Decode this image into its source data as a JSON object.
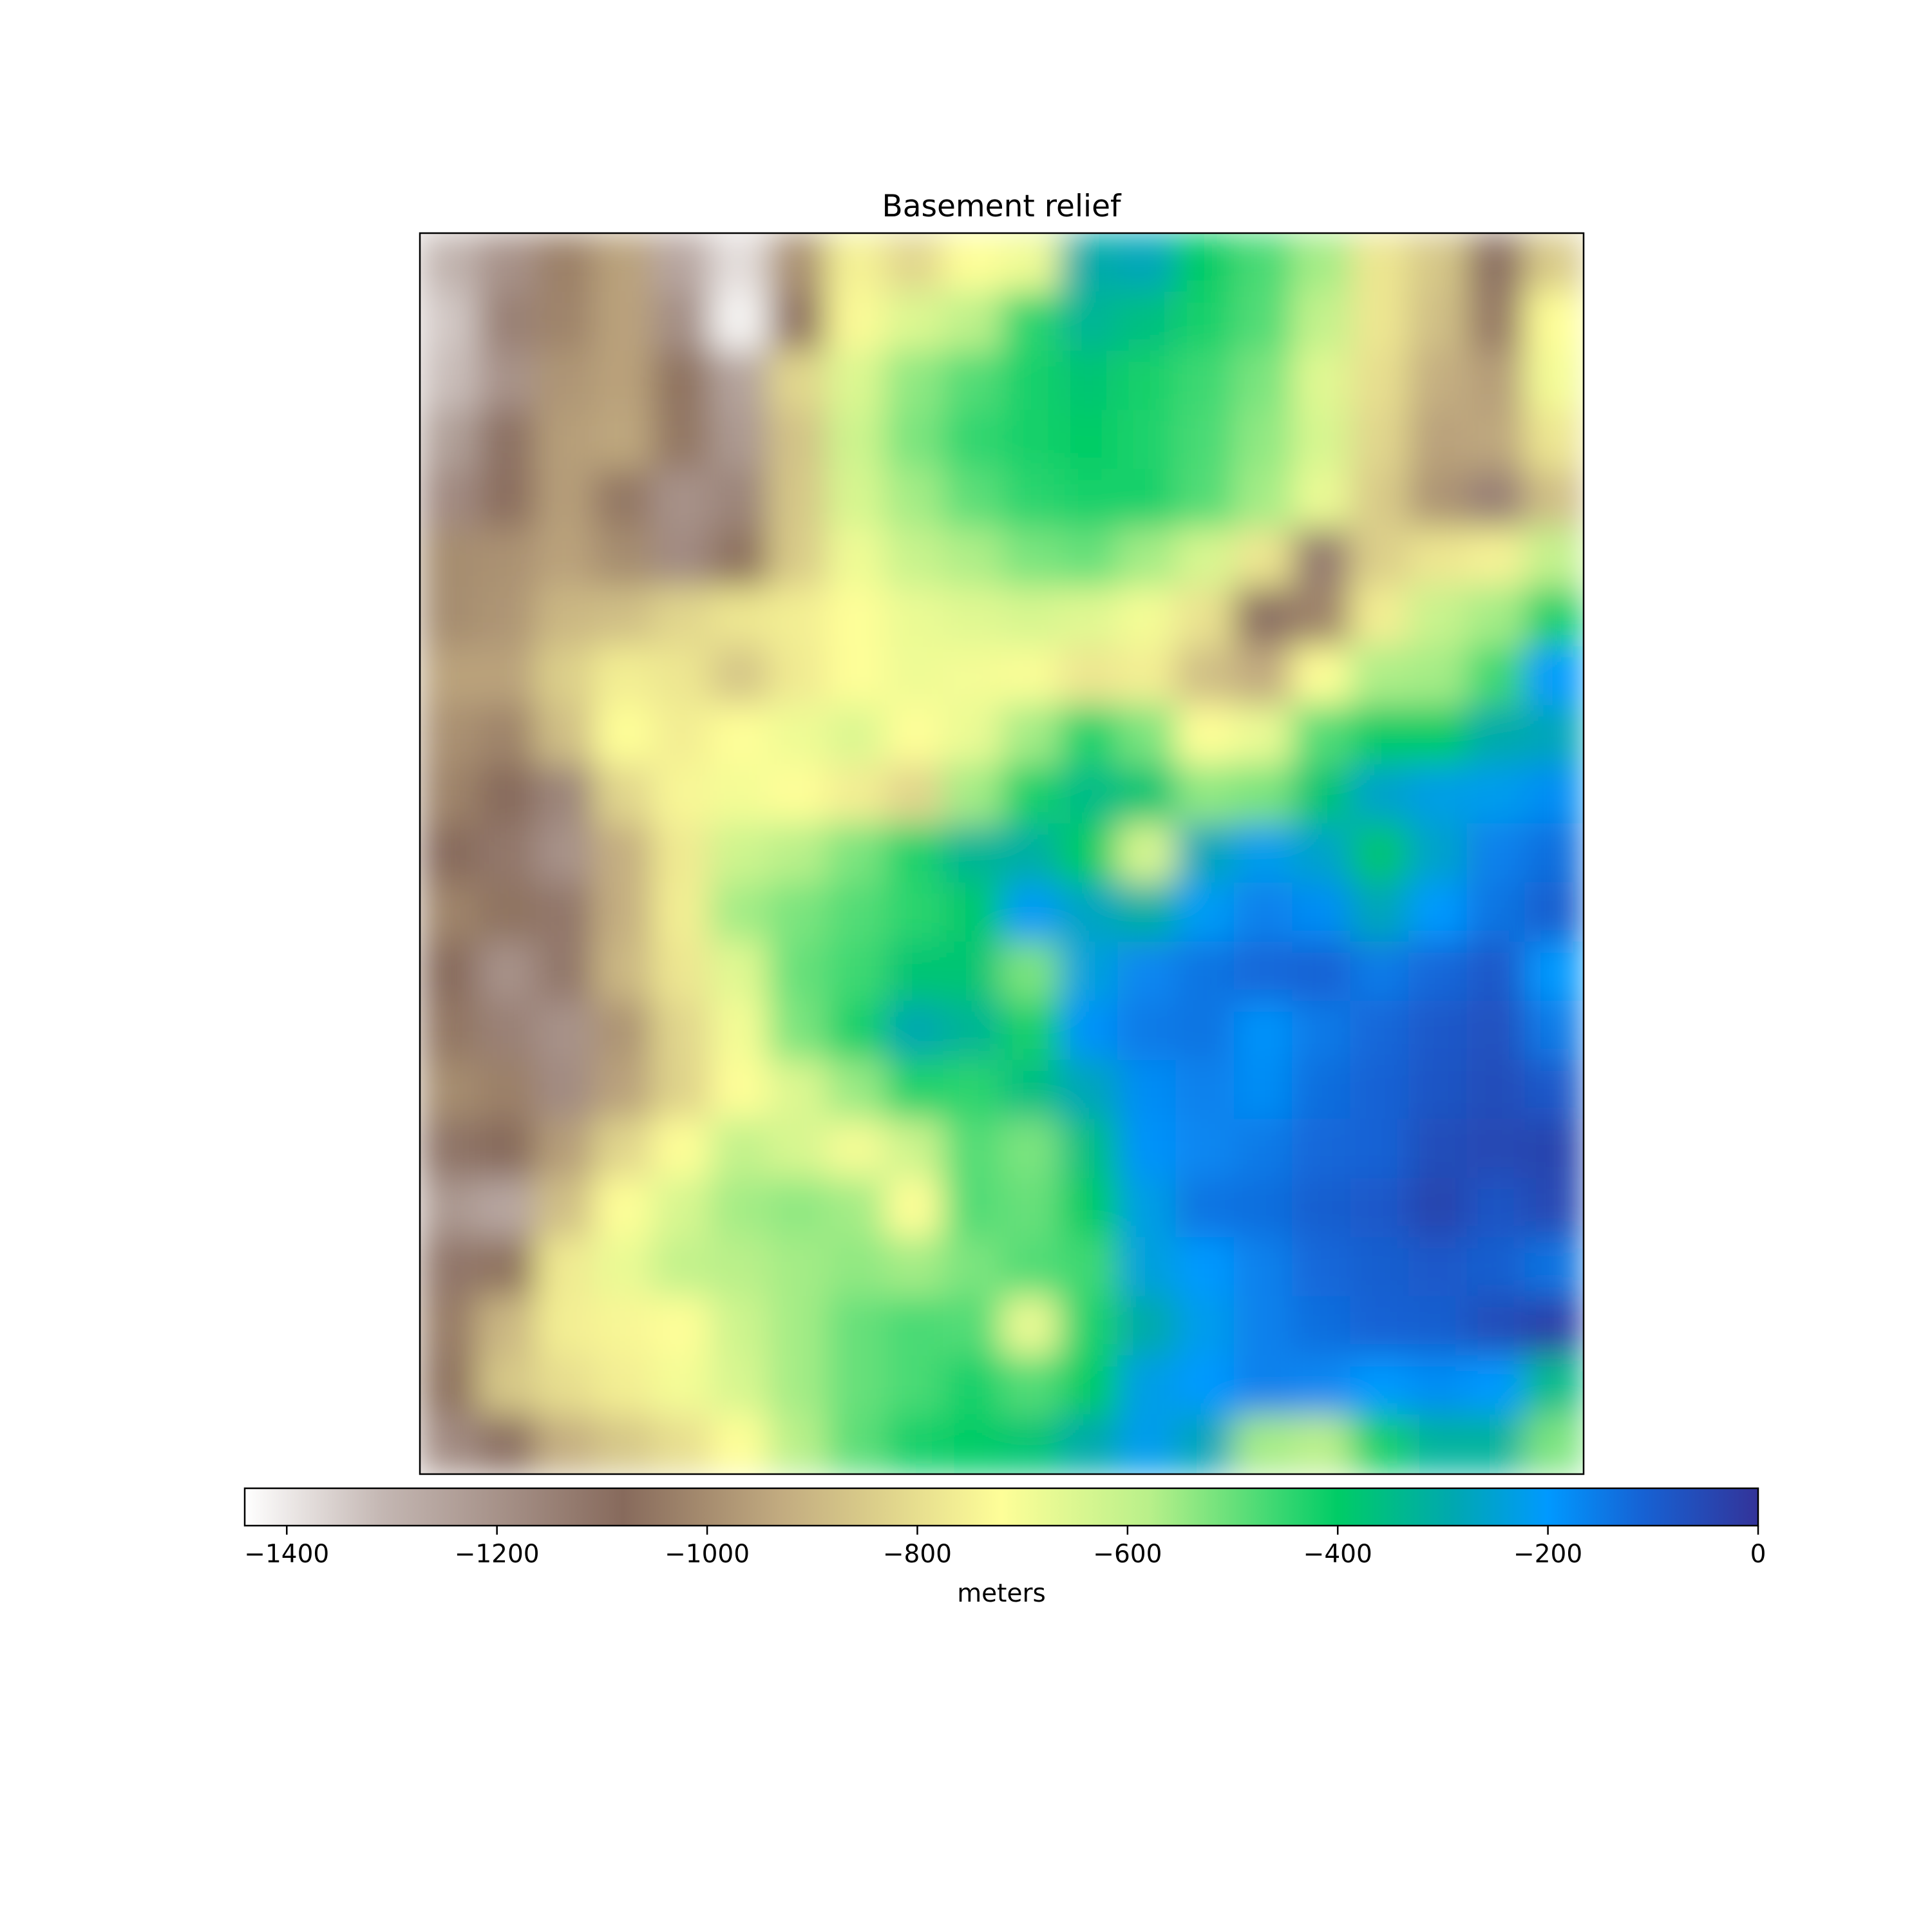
{
  "chart_data": {
    "type": "heatmap",
    "title": "Basement relief",
    "xlabel": "",
    "ylabel": "",
    "colorbar": {
      "label": "meters",
      "range": [
        -1440,
        0
      ],
      "ticks": [
        -1400,
        -1200,
        -1000,
        -800,
        -600,
        -400,
        -200,
        0
      ],
      "tick_labels": [
        "−1400",
        "−1200",
        "−1000",
        "−800",
        "−600",
        "−400",
        "−200",
        "0"
      ],
      "colormap": [
        {
          "v": -1440,
          "color": "#ffffff"
        },
        {
          "v": -1310,
          "color": "#c4b7b3"
        },
        {
          "v": -1080,
          "color": "#876a5c"
        },
        {
          "v": -930,
          "color": "#c2ab80"
        },
        {
          "v": -720,
          "color": "#fefe98"
        },
        {
          "v": -580,
          "color": "#b9f08a"
        },
        {
          "v": -400,
          "color": "#00cc66"
        },
        {
          "v": -290,
          "color": "#00a8b0"
        },
        {
          "v": -200,
          "color": "#0099ff"
        },
        {
          "v": -110,
          "color": "#1662d4"
        },
        {
          "v": 0,
          "color": "#333399"
        }
      ]
    },
    "grid": false,
    "axes_ticks_visible": false,
    "field_resolution": {
      "cols": 20,
      "rows": 21
    },
    "values": [
      [
        -1300,
        -1200,
        -1030,
        -950,
        -1260,
        -1380,
        -990,
        -750,
        -820,
        -720,
        -690,
        -300,
        -280,
        -400,
        -470,
        -560,
        -780,
        -860,
        -1100,
        -850
      ],
      [
        -1340,
        -1150,
        -1020,
        -950,
        -1190,
        -1420,
        -1050,
        -730,
        -650,
        -590,
        -440,
        -330,
        -360,
        -420,
        -480,
        -600,
        -780,
        -880,
        -1040,
        -720
      ],
      [
        -1320,
        -1200,
        -980,
        -950,
        -1060,
        -1250,
        -820,
        -650,
        -540,
        -480,
        -420,
        -380,
        -420,
        -460,
        -520,
        -660,
        -800,
        -920,
        -960,
        -700
      ],
      [
        -1240,
        -1100,
        -960,
        -940,
        -1050,
        -1220,
        -870,
        -620,
        -520,
        -450,
        -420,
        -400,
        -430,
        -470,
        -540,
        -640,
        -820,
        -950,
        -940,
        -780
      ],
      [
        -1180,
        -1070,
        -960,
        -1050,
        -1200,
        -1160,
        -860,
        -640,
        -560,
        -490,
        -440,
        -420,
        -420,
        -480,
        -560,
        -680,
        -850,
        -980,
        -1150,
        -880
      ],
      [
        -1000,
        -990,
        -950,
        -1000,
        -1180,
        -1060,
        -850,
        -690,
        -610,
        -570,
        -520,
        -500,
        -560,
        -640,
        -780,
        -1130,
        -840,
        -780,
        -750,
        -600
      ],
      [
        -1000,
        -980,
        -900,
        -880,
        -820,
        -780,
        -760,
        -720,
        -680,
        -660,
        -640,
        -660,
        -700,
        -790,
        -1100,
        -1020,
        -760,
        -610,
        -560,
        -420
      ],
      [
        -950,
        -950,
        -840,
        -760,
        -780,
        -860,
        -770,
        -720,
        -690,
        -700,
        -710,
        -780,
        -760,
        -880,
        -930,
        -720,
        -570,
        -560,
        -460,
        -200
      ],
      [
        -990,
        -1020,
        -880,
        -720,
        -760,
        -720,
        -690,
        -650,
        -720,
        -680,
        -560,
        -430,
        -520,
        -720,
        -680,
        -480,
        -400,
        -400,
        -300,
        -280
      ],
      [
        -1020,
        -1080,
        -1160,
        -820,
        -740,
        -700,
        -720,
        -760,
        -820,
        -560,
        -420,
        -350,
        -380,
        -540,
        -520,
        -380,
        -260,
        -230,
        -220,
        -180
      ],
      [
        -1080,
        -1120,
        -1200,
        -920,
        -770,
        -620,
        -580,
        -520,
        -430,
        -330,
        -310,
        -400,
        -640,
        -280,
        -220,
        -260,
        -380,
        -260,
        -160,
        -130
      ],
      [
        -1020,
        -1060,
        -1120,
        -920,
        -760,
        -560,
        -520,
        -480,
        -440,
        -390,
        -210,
        -270,
        -310,
        -210,
        -160,
        -180,
        -280,
        -200,
        -140,
        -100
      ],
      [
        -1080,
        -1200,
        -1120,
        -900,
        -780,
        -660,
        -500,
        -460,
        -380,
        -380,
        -520,
        -240,
        -170,
        -140,
        -120,
        -110,
        -150,
        -120,
        -90,
        -200
      ],
      [
        -1050,
        -1150,
        -1200,
        -980,
        -820,
        -700,
        -520,
        -420,
        -290,
        -330,
        -420,
        -190,
        -150,
        -140,
        -190,
        -150,
        -120,
        -90,
        -70,
        -150
      ],
      [
        -1000,
        -1030,
        -1180,
        -950,
        -830,
        -720,
        -650,
        -550,
        -430,
        -440,
        -360,
        -280,
        -180,
        -160,
        -180,
        -130,
        -110,
        -80,
        -60,
        -90
      ],
      [
        -1110,
        -1080,
        -960,
        -820,
        -720,
        -600,
        -640,
        -700,
        -620,
        -480,
        -520,
        -360,
        -190,
        -170,
        -150,
        -120,
        -110,
        -60,
        -50,
        -40
      ],
      [
        -1220,
        -1260,
        -880,
        -720,
        -640,
        -560,
        -540,
        -560,
        -720,
        -480,
        -500,
        -400,
        -230,
        -140,
        -130,
        -100,
        -90,
        -40,
        -80,
        -50
      ],
      [
        -1120,
        -1060,
        -770,
        -680,
        -600,
        -580,
        -560,
        -540,
        -560,
        -520,
        -480,
        -460,
        -240,
        -200,
        -160,
        -120,
        -100,
        -90,
        -100,
        -140
      ],
      [
        -1040,
        -900,
        -760,
        -740,
        -720,
        -620,
        -560,
        -500,
        -470,
        -480,
        -680,
        -430,
        -300,
        -220,
        -160,
        -130,
        -110,
        -100,
        -60,
        -30
      ],
      [
        -1060,
        -860,
        -800,
        -760,
        -700,
        -640,
        -560,
        -500,
        -470,
        -420,
        -480,
        -400,
        -230,
        -200,
        -160,
        -170,
        -200,
        -180,
        -200,
        -350
      ],
      [
        -1180,
        -1100,
        -920,
        -860,
        -800,
        -720,
        -580,
        -490,
        -420,
        -400,
        -380,
        -300,
        -220,
        -280,
        -560,
        -580,
        -420,
        -320,
        -320,
        -520
      ]
    ]
  }
}
